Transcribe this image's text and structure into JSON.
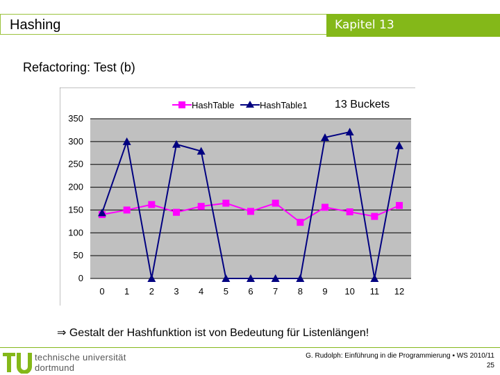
{
  "header": {
    "title": "Hashing",
    "chapter": "Kapitel 13"
  },
  "slide": {
    "title": "Refactoring: Test (b)",
    "conclusion_symbol": "⇒",
    "conclusion": "Gestalt der Hashfunktion ist von Bedeutung für Listenlängen!"
  },
  "footer": {
    "university_line1": "technische universität",
    "university_line2": "dortmund",
    "credit": "G. Rudolph: Einführung in die Programmierung ▪ WS 2010/11",
    "page": "25"
  },
  "colors": {
    "accent": "#84b819",
    "series1": "#ff00ff",
    "series2": "#000080",
    "plot_bg": "#c0c0c0"
  },
  "chart_data": {
    "type": "line",
    "title": "13 Buckets",
    "categories": [
      "0",
      "1",
      "2",
      "3",
      "4",
      "5",
      "6",
      "7",
      "8",
      "9",
      "10",
      "11",
      "12"
    ],
    "ylim": [
      0,
      350
    ],
    "yticks": [
      "0",
      "50",
      "100",
      "150",
      "200",
      "250",
      "300",
      "350"
    ],
    "grid": true,
    "legend": "top",
    "series": [
      {
        "name": "HashTable",
        "marker": "square",
        "values": [
          140,
          150,
          162,
          145,
          158,
          165,
          147,
          165,
          123,
          156,
          146,
          136,
          160
        ]
      },
      {
        "name": "HashTable1",
        "marker": "triangle",
        "values": [
          144,
          300,
          0,
          294,
          279,
          0,
          0,
          0,
          0,
          309,
          321,
          0,
          291
        ]
      }
    ]
  }
}
